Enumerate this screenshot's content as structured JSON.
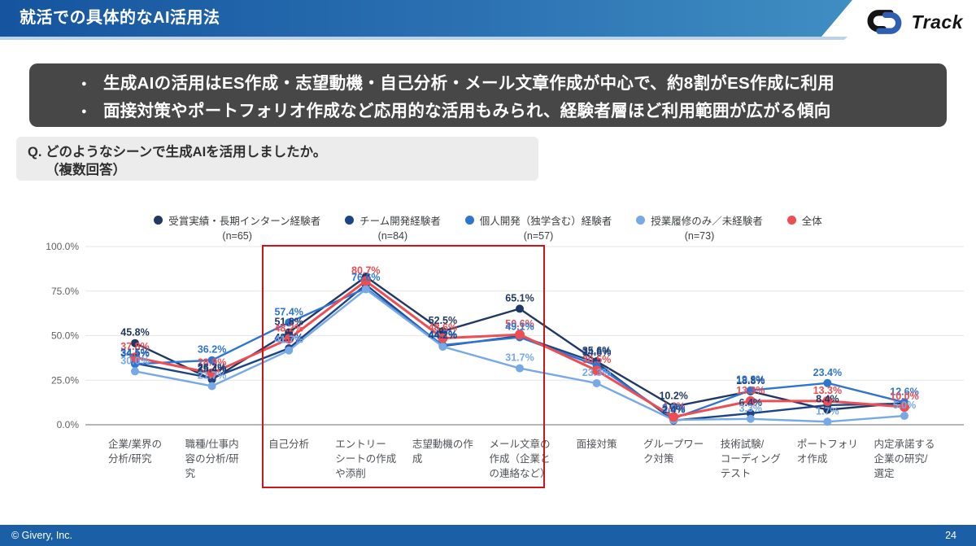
{
  "header": {
    "title": "就活での具体的なAI活用法",
    "logo_text": "Track"
  },
  "summary": {
    "bullets": [
      "生成AIの活用はES作成・志望動機・自己分析・メール文章作成が中心で、約8割がES作成に利用",
      "面接対策やポートフォリオ作成など応用的な活用もみられ、経験者層ほど利用範囲が広がる傾向"
    ]
  },
  "question": {
    "line1": "Q. どのようなシーンで生成AIを活用しましたか。",
    "line2": "（複数回答）"
  },
  "footer": {
    "copyright": "© Givery, Inc.",
    "page_number": "24"
  },
  "chart_data": {
    "type": "line",
    "title": "",
    "ylim": [
      0,
      100
    ],
    "grid": true,
    "legend_position": "top",
    "y_ticks": [
      "100.0%",
      "75.0%",
      "50.0%",
      "25.0%",
      "0.0%"
    ],
    "categories": [
      "企業/業界の\n分析/研究",
      "職種/仕事内\n容の分析/研\n究",
      "自己分析",
      "エントリー\nシートの作成\nや添削",
      "志望動機の作\n成",
      "メール文章の\n作成（企業と\nの連絡など）",
      "面接対策",
      "グループワー\nク対策",
      "技術試験/\nコーディング\nテスト",
      "ポートフォリ\nオ作成",
      "内定承諾する\n企業の研究/\n選定"
    ],
    "series": [
      {
        "name": "受賞実績・長期インターン経験者",
        "n_label": "(n=65)",
        "color": "#203864",
        "values": [
          45.8,
          25.4,
          51.8,
          83.1,
          52.5,
          65.1,
          35.6,
          10.2,
          18.8,
          8.4,
          12.3
        ]
      },
      {
        "name": "チーム開発経験者",
        "n_label": "(n=84)",
        "color": "#1c4587",
        "values": [
          34.5,
          26.2,
          42.9,
          78.6,
          44.2,
          49.8,
          34.8,
          2.4,
          6.4,
          11.0,
          11.9
        ]
      },
      {
        "name": "個人開発（独学含む）経験者",
        "n_label": "(n=57)",
        "color": "#2e75d2",
        "values": [
          34.1,
          36.2,
          57.4,
          76.6,
          44.7,
          49.1,
          33.3,
          3.5,
          19.3,
          23.4,
          12.6
        ]
      },
      {
        "name": "授業履修のみ／未経験者",
        "n_label": "(n=73)",
        "color": "#76a9e6",
        "values": [
          30.0,
          21.7,
          41.7,
          76.0,
          43.8,
          31.7,
          23.3,
          2.7,
          3.3,
          1.7,
          5.0
        ]
      },
      {
        "name": "全体",
        "n_label": "",
        "color": "#ee4d52",
        "values": [
          37.8,
          28.9,
          48.2,
          80.7,
          48.6,
          50.6,
          30.5,
          4.4,
          13.3,
          13.3,
          10.0
        ]
      }
    ],
    "point_labels": [
      {
        "c": 0,
        "s": 0,
        "t": "45.8%"
      },
      {
        "c": 0,
        "s": 4,
        "t": "37.8%"
      },
      {
        "c": 0,
        "s": 1,
        "t": "34.5%"
      },
      {
        "c": 0,
        "s": 2,
        "t": "34.1%"
      },
      {
        "c": 0,
        "s": 3,
        "t": "30.0%"
      },
      {
        "c": 1,
        "s": 2,
        "t": "36.2%"
      },
      {
        "c": 1,
        "s": 4,
        "t": "28.9%"
      },
      {
        "c": 1,
        "s": 1,
        "t": "26.2%"
      },
      {
        "c": 1,
        "s": 0,
        "t": "25.4%"
      },
      {
        "c": 1,
        "s": 3,
        "t": "21.7%"
      },
      {
        "c": 2,
        "s": 2,
        "t": "57.4%"
      },
      {
        "c": 2,
        "s": 0,
        "t": "51.8%"
      },
      {
        "c": 2,
        "s": 4,
        "t": "48.2%"
      },
      {
        "c": 2,
        "s": 1,
        "t": "42.9%"
      },
      {
        "c": 2,
        "s": 3,
        "t": "41.7%"
      },
      {
        "c": 3,
        "s": 4,
        "t": "80.7%"
      },
      {
        "c": 3,
        "s": 2,
        "t": "76.6%"
      },
      {
        "c": 4,
        "s": 0,
        "t": "52.5%"
      },
      {
        "c": 4,
        "s": 4,
        "t": "48.6%"
      },
      {
        "c": 4,
        "s": 2,
        "t": "44.7%"
      },
      {
        "c": 4,
        "s": 1,
        "t": "44.2%"
      },
      {
        "c": 5,
        "s": 0,
        "t": "65.1%"
      },
      {
        "c": 5,
        "s": 4,
        "t": "50.6%"
      },
      {
        "c": 5,
        "s": 2,
        "t": "49.1%"
      },
      {
        "c": 5,
        "s": 3,
        "t": "31.7%"
      },
      {
        "c": 6,
        "s": 0,
        "t": "35.6%"
      },
      {
        "c": 6,
        "s": 1,
        "t": "34.8%"
      },
      {
        "c": 6,
        "s": 4,
        "t": "30.5%"
      },
      {
        "c": 6,
        "s": 3,
        "t": "23.3%"
      },
      {
        "c": 7,
        "s": 0,
        "t": "10.2%"
      },
      {
        "c": 7,
        "s": 4,
        "t": "4.4%"
      },
      {
        "c": 7,
        "s": 2,
        "t": "3.5%"
      },
      {
        "c": 7,
        "s": 3,
        "t": "2.7%"
      },
      {
        "c": 7,
        "s": 1,
        "t": "2.4%"
      },
      {
        "c": 8,
        "s": 0,
        "t": "18.8%"
      },
      {
        "c": 8,
        "s": 2,
        "t": "19.3%"
      },
      {
        "c": 8,
        "s": 4,
        "t": "13.3%"
      },
      {
        "c": 8,
        "s": 1,
        "t": "6.4%"
      },
      {
        "c": 8,
        "s": 3,
        "t": "3.3%"
      },
      {
        "c": 9,
        "s": 2,
        "t": "23.4%"
      },
      {
        "c": 9,
        "s": 4,
        "t": "13.3%"
      },
      {
        "c": 9,
        "s": 0,
        "t": "8.4%"
      },
      {
        "c": 9,
        "s": 3,
        "t": "1.7%"
      },
      {
        "c": 10,
        "s": 2,
        "t": "12.6%"
      },
      {
        "c": 10,
        "s": 4,
        "t": "10.0%"
      },
      {
        "c": 10,
        "s": 3,
        "t": "5.0%"
      }
    ],
    "highlight": {
      "from_category": 2,
      "to_category": 5,
      "color": "#cf1418"
    }
  },
  "colors": {
    "banner_start": "#15549e",
    "banner_end": "#3f8ec2",
    "summary_bg": "#474747",
    "question_bg": "#ececec",
    "footer_bg": "#1b5fa6",
    "highlight_red": "#cf1418",
    "logo_black": "#141414",
    "logo_blue": "#2f5fb2"
  }
}
